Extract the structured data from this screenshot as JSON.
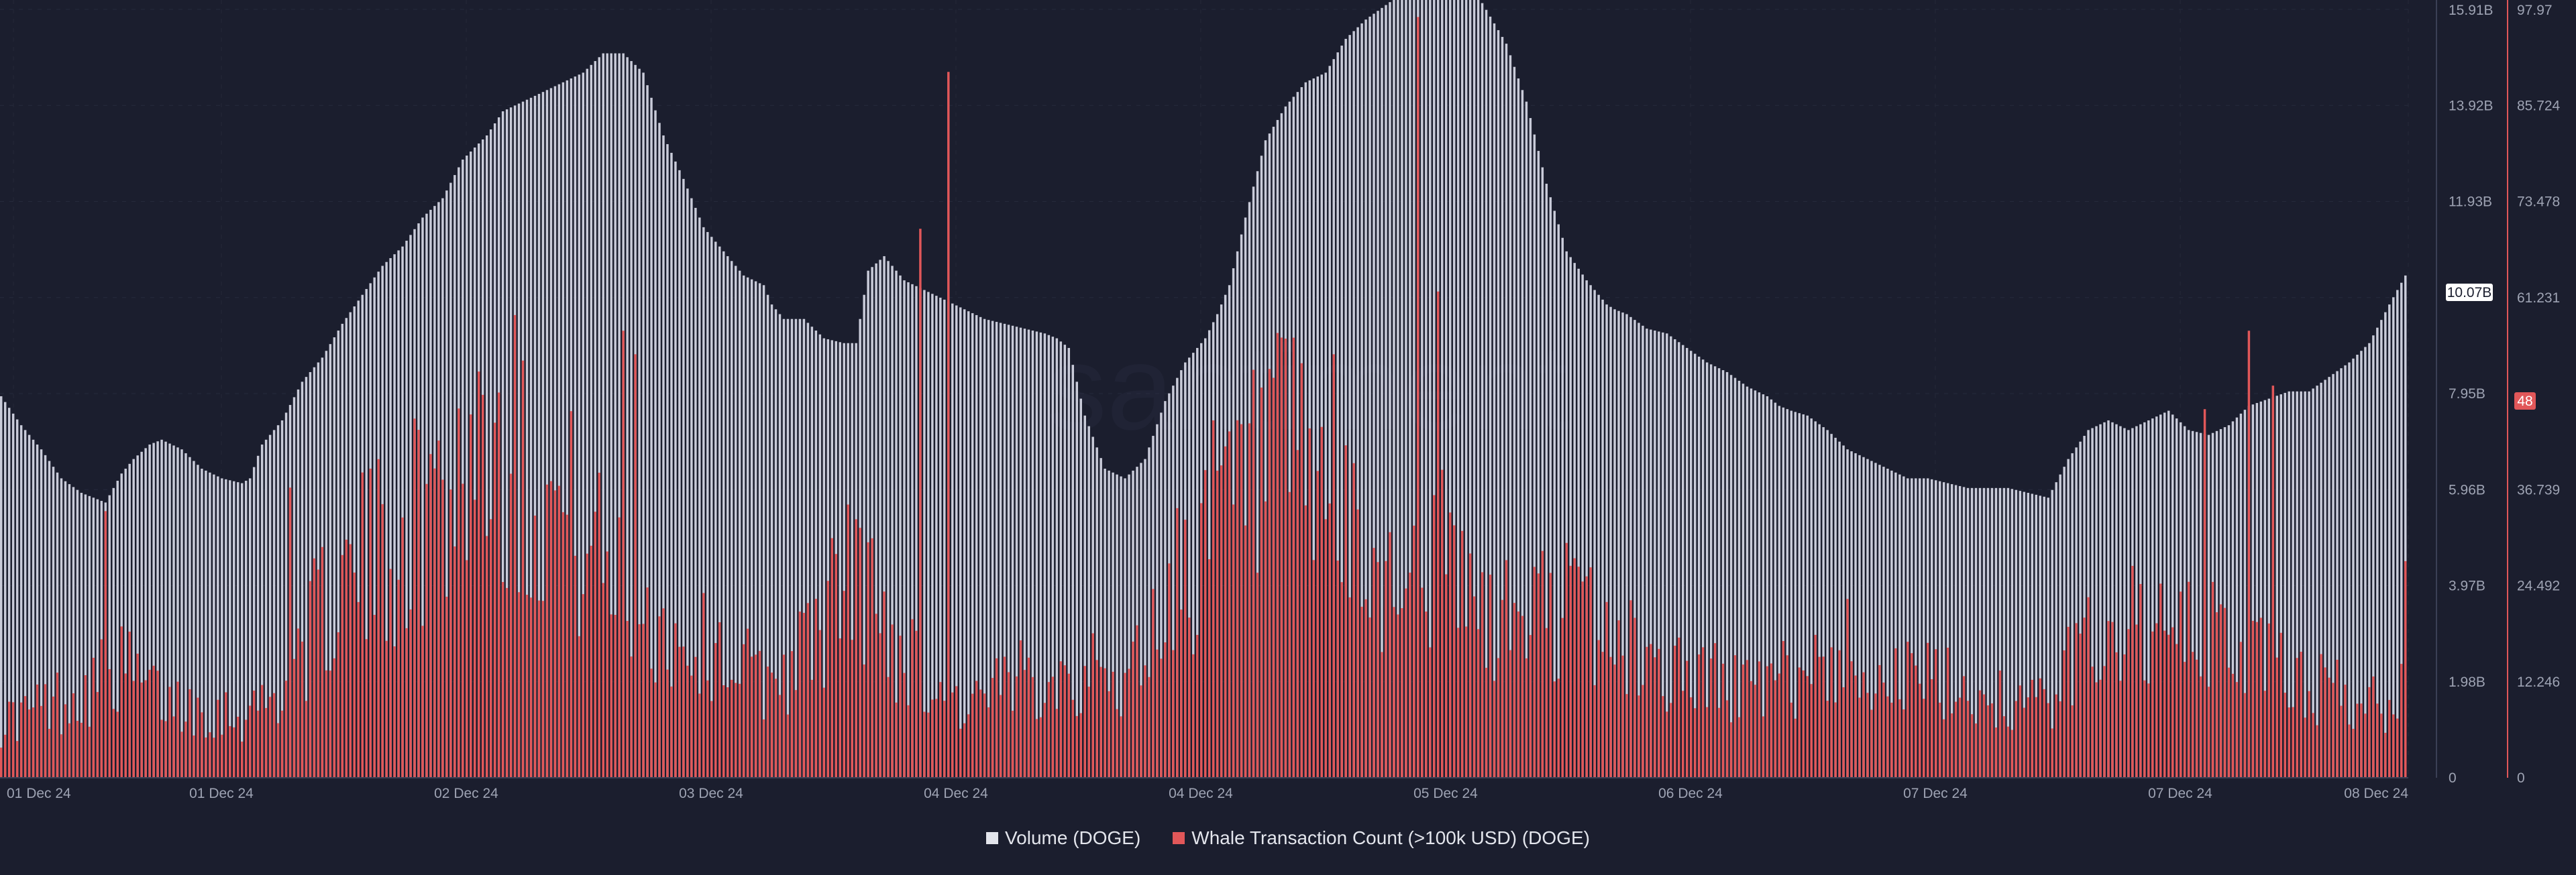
{
  "chart_data": {
    "type": "bar",
    "title": "",
    "xlabel": "",
    "ylabel": "",
    "grid": true,
    "legend_placement": "bottom-center",
    "x_tick_labels": [
      "01 Dec 24",
      "01 Dec 24",
      "02 Dec 24",
      "03 Dec 24",
      "04 Dec 24",
      "04 Dec 24",
      "05 Dec 24",
      "06 Dec 24",
      "07 Dec 24",
      "07 Dec 24",
      "08 Dec 24"
    ],
    "y_left": {
      "ylim": [
        0,
        15.91
      ],
      "unit": "B",
      "tick_labels": [
        "0",
        "1.98B",
        "3.97B",
        "5.96B",
        "7.95B",
        "",
        "11.93B",
        "13.92B",
        "15.91B"
      ]
    },
    "y_right": {
      "ylim": [
        0,
        97.97
      ],
      "tick_labels": [
        "0",
        "12.246",
        "24.492",
        "36.739",
        "",
        "61.231",
        "73.478",
        "85.724",
        "97.97"
      ]
    },
    "current_values": {
      "volume_label": "10.07B",
      "volume": 10.07,
      "whale_label": "48",
      "whale": 48
    },
    "series": [
      {
        "name": "Volume (DOGE)",
        "axis": "left",
        "color": "#c9cbd9",
        "keypoints_x": [
          0,
          5,
          10,
          15,
          20,
          26,
          30,
          33,
          37,
          40,
          45,
          50,
          55,
          60,
          62,
          65,
          70,
          75,
          80,
          85,
          90,
          95,
          100,
          105,
          110,
          115,
          121,
          125,
          130,
          135,
          140,
          145,
          150,
          155,
          160,
          165,
          170,
          175,
          180,
          185,
          190,
          192,
          195,
          200,
          205,
          210,
          213,
          216,
          220,
          225,
          230,
          235,
          240,
          245,
          250,
          255,
          260,
          263,
          266,
          270,
          275,
          280,
          285,
          290,
          295,
          300,
          303,
          306,
          310,
          315,
          320,
          325,
          330,
          335,
          340,
          345,
          350,
          355,
          358,
          362,
          365,
          370,
          375,
          380,
          385,
          390,
          395,
          400,
          402,
          405,
          410,
          415,
          420,
          425,
          430,
          435,
          440,
          443,
          446,
          450,
          455,
          460,
          465,
          470,
          475,
          480,
          485,
          490,
          495,
          500,
          505,
          510,
          515,
          520,
          525,
          530,
          535,
          540,
          545,
          550,
          555,
          560,
          570,
          575,
          580,
          585,
          590,
          595,
          599
        ],
        "keypoints_y": [
          7.9,
          7.3,
          6.8,
          6.2,
          5.9,
          5.7,
          6.3,
          6.6,
          6.9,
          7.0,
          6.8,
          6.4,
          6.2,
          6.1,
          6.2,
          6.9,
          7.4,
          8.2,
          8.7,
          9.4,
          10.0,
          10.6,
          11.0,
          11.6,
          12.0,
          12.8,
          13.3,
          13.8,
          14.0,
          14.2,
          14.4,
          14.6,
          15.0,
          15.0,
          14.6,
          13.3,
          12.4,
          11.4,
          10.9,
          10.4,
          10.2,
          9.8,
          9.5,
          9.5,
          9.1,
          9.0,
          9.0,
          10.5,
          10.8,
          10.3,
          10.1,
          9.9,
          9.7,
          9.5,
          9.4,
          9.3,
          9.2,
          9.1,
          8.9,
          7.5,
          6.4,
          6.2,
          6.6,
          7.8,
          8.6,
          9.1,
          9.6,
          10.2,
          11.6,
          13.2,
          13.9,
          14.4,
          14.6,
          15.3,
          15.7,
          16.0,
          16.3,
          16.5,
          16.4,
          16.2,
          16.6,
          15.9,
          15.2,
          14.0,
          12.3,
          10.9,
          10.3,
          9.8,
          9.7,
          9.6,
          9.3,
          9.2,
          8.9,
          8.6,
          8.4,
          8.1,
          7.9,
          7.7,
          7.6,
          7.5,
          7.2,
          6.8,
          6.6,
          6.4,
          6.2,
          6.2,
          6.1,
          6.0,
          6.0,
          6.0,
          5.9,
          5.8,
          6.6,
          7.2,
          7.4,
          7.2,
          7.4,
          7.6,
          7.2,
          7.1,
          7.3,
          7.7,
          8.0,
          8.0,
          8.3,
          8.6,
          9.0,
          9.8,
          10.4
        ]
      },
      {
        "name": "Whale Transaction Count (>100k USD) (DOGE)",
        "axis": "right",
        "color": "#e15759",
        "keypoints_x": [
          0,
          10,
          20,
          30,
          40,
          50,
          60,
          70,
          74,
          80,
          90,
          100,
          110,
          121,
          130,
          140,
          150,
          160,
          170,
          180,
          190,
          200,
          213,
          220,
          228,
          232,
          240,
          250,
          260,
          270,
          280,
          290,
          300,
          310,
          320,
          330,
          340,
          350,
          358,
          366,
          370,
          380,
          390,
          400,
          410,
          420,
          430,
          440,
          450,
          460,
          470,
          480,
          490,
          500,
          510,
          520,
          530,
          540,
          550,
          560,
          570,
          580,
          590,
          597,
          599
        ],
        "keypoints_y": [
          7,
          9,
          11,
          14,
          10,
          9,
          8,
          11,
          16,
          21,
          27,
          31,
          36,
          45,
          38,
          34,
          27,
          21,
          17,
          16,
          12,
          16,
          27,
          19,
          14,
          12,
          9,
          11,
          14,
          13,
          12,
          22,
          31,
          36,
          40,
          34,
          25,
          26,
          28,
          23,
          19,
          21,
          22,
          18,
          15,
          13,
          12,
          11,
          14,
          16,
          13,
          12,
          11,
          10,
          9,
          18,
          20,
          17,
          18,
          16,
          13,
          11,
          9,
          10,
          31
        ],
        "spikes": [
          {
            "x": 26,
            "value": 34
          },
          {
            "x": 72,
            "value": 37
          },
          {
            "x": 109,
            "value": 43
          },
          {
            "x": 128,
            "value": 59
          },
          {
            "x": 155,
            "value": 57
          },
          {
            "x": 158,
            "value": 54
          },
          {
            "x": 229,
            "value": 70
          },
          {
            "x": 236,
            "value": 90
          },
          {
            "x": 317,
            "value": 51
          },
          {
            "x": 332,
            "value": 54
          },
          {
            "x": 353,
            "value": 97
          },
          {
            "x": 358,
            "value": 62
          },
          {
            "x": 549,
            "value": 47
          },
          {
            "x": 560,
            "value": 57
          },
          {
            "x": 566,
            "value": 50
          }
        ],
        "noise_seed": 17,
        "noise_amplitude": 0.45
      }
    ]
  },
  "legend": {
    "volume_label": "Volume (DOGE)",
    "whale_label": "Whale Transaction Count (>100k USD) (DOGE)",
    "volume_color": "#c9cbd9",
    "whale_color": "#e15759"
  }
}
